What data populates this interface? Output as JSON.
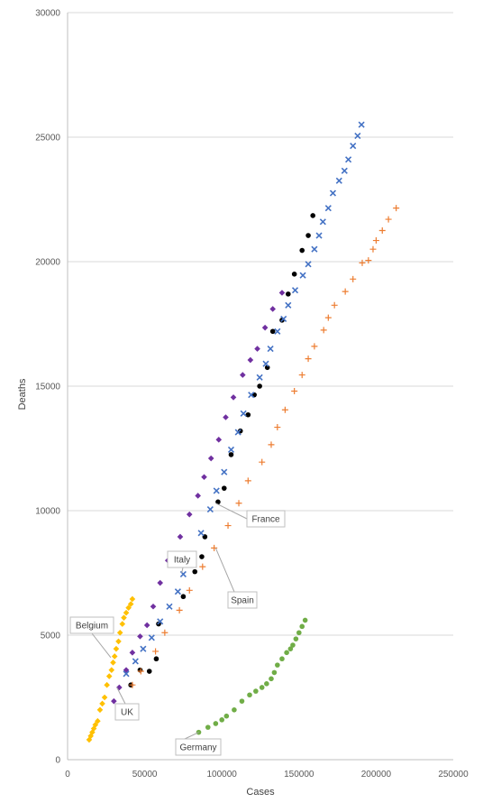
{
  "chart_data": {
    "type": "scatter",
    "title": "",
    "xlabel": "Cases",
    "ylabel": "Deaths",
    "xlim": [
      0,
      250000
    ],
    "ylim": [
      0,
      30000
    ],
    "x_ticks": [
      0,
      50000,
      100000,
      150000,
      200000,
      250000
    ],
    "y_ticks": [
      0,
      5000,
      10000,
      15000,
      20000,
      25000,
      30000
    ],
    "x_tick_labels": [
      "0",
      "50000",
      "100000",
      "150000",
      "200000",
      "250000"
    ],
    "y_tick_labels": [
      "0",
      "5000",
      "10000",
      "15000",
      "20000",
      "25000",
      "30000"
    ],
    "grid": "horizontal",
    "legend": "none",
    "series": [
      {
        "name": "Belgium",
        "color": "#ffc000",
        "marker": "diamond",
        "label_at": [
          28000,
          4100
        ],
        "points": [
          [
            14000,
            800
          ],
          [
            15000,
            950
          ],
          [
            16000,
            1100
          ],
          [
            17000,
            1250
          ],
          [
            18000,
            1400
          ],
          [
            19500,
            1550
          ],
          [
            21000,
            2000
          ],
          [
            22500,
            2250
          ],
          [
            24000,
            2500
          ],
          [
            25500,
            3000
          ],
          [
            27000,
            3350
          ],
          [
            28500,
            3600
          ],
          [
            29500,
            3900
          ],
          [
            30500,
            4150
          ],
          [
            31500,
            4450
          ],
          [
            33000,
            4750
          ],
          [
            34000,
            5100
          ],
          [
            35500,
            5450
          ],
          [
            36500,
            5700
          ],
          [
            38000,
            5900
          ],
          [
            39500,
            6100
          ],
          [
            41000,
            6250
          ],
          [
            42000,
            6450
          ]
        ]
      },
      {
        "name": "UK",
        "color": "#7030a0",
        "marker": "diamond",
        "label_at": [
          32000,
          2900
        ],
        "points": [
          [
            30000,
            2350
          ],
          [
            33500,
            2900
          ],
          [
            38000,
            3600
          ],
          [
            42000,
            4300
          ],
          [
            47000,
            4950
          ],
          [
            51500,
            5400
          ],
          [
            55500,
            6150
          ],
          [
            60000,
            7100
          ],
          [
            65000,
            8000
          ],
          [
            73000,
            8950
          ],
          [
            79000,
            9850
          ],
          [
            84500,
            10600
          ],
          [
            88500,
            11350
          ],
          [
            93000,
            12100
          ],
          [
            98000,
            12850
          ],
          [
            102500,
            13750
          ],
          [
            107500,
            14550
          ],
          [
            113500,
            15450
          ],
          [
            118500,
            16050
          ],
          [
            123000,
            16500
          ],
          [
            128000,
            17350
          ],
          [
            133000,
            18100
          ],
          [
            139000,
            18750
          ]
        ]
      },
      {
        "name": "Italy",
        "color": "#000000",
        "marker": "circle",
        "label_at": [
          74000,
          7500
        ],
        "points": [
          [
            41000,
            3000
          ],
          [
            47000,
            3600
          ],
          [
            53000,
            3550
          ],
          [
            57500,
            4050
          ],
          [
            59000,
            5450
          ],
          [
            75000,
            6550
          ],
          [
            82500,
            7550
          ],
          [
            87000,
            8150
          ],
          [
            89000,
            8950
          ],
          [
            97500,
            10350
          ],
          [
            101500,
            10900
          ],
          [
            106000,
            12250
          ],
          [
            112000,
            13200
          ],
          [
            117000,
            13850
          ],
          [
            121000,
            14650
          ],
          [
            124500,
            15000
          ],
          [
            129500,
            15750
          ],
          [
            133000,
            17200
          ],
          [
            139000,
            17650
          ],
          [
            143000,
            18700
          ],
          [
            147000,
            19500
          ],
          [
            152000,
            20450
          ],
          [
            156000,
            21050
          ],
          [
            159000,
            21850
          ]
        ]
      },
      {
        "name": "France",
        "color": "#4472c4",
        "marker": "x",
        "label_at": [
          96000,
          10300
        ],
        "points": [
          [
            38000,
            3450
          ],
          [
            44000,
            3950
          ],
          [
            49000,
            4450
          ],
          [
            54500,
            4900
          ],
          [
            60000,
            5550
          ],
          [
            66000,
            6150
          ],
          [
            71500,
            6750
          ],
          [
            75000,
            7450
          ],
          [
            86500,
            9100
          ],
          [
            92500,
            10050
          ],
          [
            96500,
            10800
          ],
          [
            101500,
            11550
          ],
          [
            106000,
            12450
          ],
          [
            110500,
            13150
          ],
          [
            114000,
            13900
          ],
          [
            119000,
            14650
          ],
          [
            124500,
            15350
          ],
          [
            128500,
            15900
          ],
          [
            131500,
            16500
          ],
          [
            136000,
            17200
          ],
          [
            140000,
            17700
          ],
          [
            143000,
            18250
          ],
          [
            147500,
            18850
          ],
          [
            152500,
            19450
          ],
          [
            156000,
            19900
          ],
          [
            160000,
            20500
          ],
          [
            163000,
            21050
          ],
          [
            165500,
            21600
          ],
          [
            169000,
            22150
          ],
          [
            172000,
            22750
          ],
          [
            176000,
            23250
          ],
          [
            179500,
            23650
          ],
          [
            182000,
            24100
          ],
          [
            185000,
            24650
          ],
          [
            188000,
            25050
          ],
          [
            190500,
            25500
          ]
        ]
      },
      {
        "name": "Spain",
        "color": "#ed7d31",
        "marker": "plus",
        "label_at": [
          96000,
          8500
        ],
        "points": [
          [
            42000,
            3000
          ],
          [
            47500,
            3550
          ],
          [
            57000,
            4350
          ],
          [
            63000,
            5100
          ],
          [
            72500,
            6000
          ],
          [
            79000,
            6800
          ],
          [
            87500,
            7750
          ],
          [
            95000,
            8500
          ],
          [
            104000,
            9400
          ],
          [
            111000,
            10300
          ],
          [
            117000,
            11200
          ],
          [
            126000,
            11950
          ],
          [
            132000,
            12650
          ],
          [
            136000,
            13350
          ],
          [
            141000,
            14050
          ],
          [
            147000,
            14800
          ],
          [
            152000,
            15450
          ],
          [
            156000,
            16100
          ],
          [
            160000,
            16600
          ],
          [
            166000,
            17250
          ],
          [
            169000,
            17750
          ],
          [
            173000,
            18250
          ],
          [
            180000,
            18800
          ],
          [
            185000,
            19300
          ],
          [
            191000,
            19950
          ],
          [
            195000,
            20050
          ],
          [
            198000,
            20500
          ],
          [
            200000,
            20850
          ],
          [
            204000,
            21250
          ],
          [
            208000,
            21700
          ],
          [
            213000,
            22150
          ]
        ]
      },
      {
        "name": "Germany",
        "color": "#70ad47",
        "marker": "circle",
        "label_at": [
          85000,
          1100
        ],
        "points": [
          [
            85000,
            1100
          ],
          [
            91000,
            1300
          ],
          [
            96000,
            1450
          ],
          [
            100000,
            1600
          ],
          [
            103000,
            1750
          ],
          [
            108000,
            2000
          ],
          [
            113000,
            2350
          ],
          [
            118000,
            2600
          ],
          [
            122000,
            2750
          ],
          [
            126000,
            2900
          ],
          [
            129000,
            3050
          ],
          [
            132000,
            3250
          ],
          [
            134000,
            3500
          ],
          [
            136000,
            3800
          ],
          [
            139000,
            4050
          ],
          [
            142000,
            4300
          ],
          [
            144500,
            4450
          ],
          [
            146000,
            4600
          ],
          [
            148000,
            4850
          ],
          [
            150000,
            5100
          ],
          [
            152000,
            5350
          ],
          [
            154000,
            5600
          ]
        ]
      }
    ]
  }
}
